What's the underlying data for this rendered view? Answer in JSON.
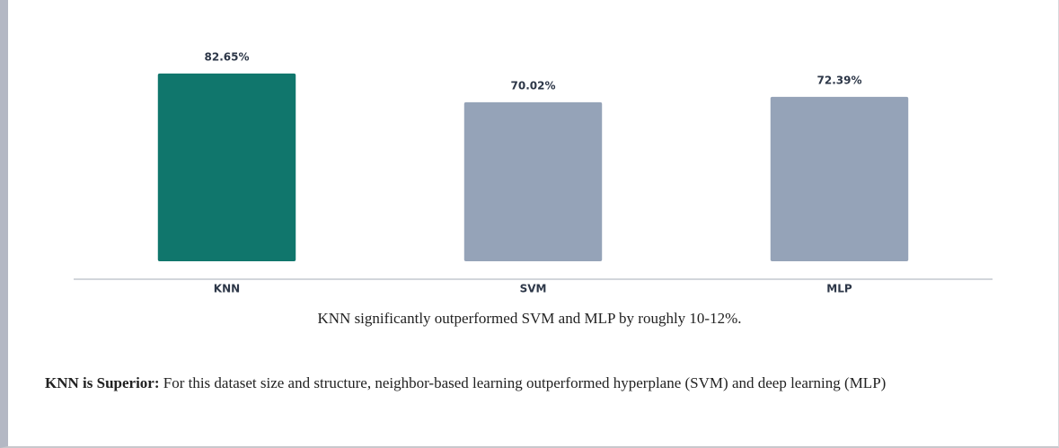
{
  "chart_data": {
    "type": "bar",
    "categories": [
      "KNN",
      "SVM",
      "MLP"
    ],
    "values": [
      82.65,
      70.02,
      72.39
    ],
    "value_labels": [
      "82.65%",
      "70.02%",
      "72.39%"
    ],
    "colors": [
      "#10766c",
      "#95a3b8",
      "#95a3b8"
    ],
    "ylim": [
      0,
      100
    ]
  },
  "caption": "KNN significantly outperformed SVM and MLP by roughly 10-12%.",
  "note": {
    "heading": "KNN is Superior:",
    "text": "For this dataset size and structure, neighbor-based learning outperformed hyperplane (SVM) and deep learning (MLP)"
  }
}
